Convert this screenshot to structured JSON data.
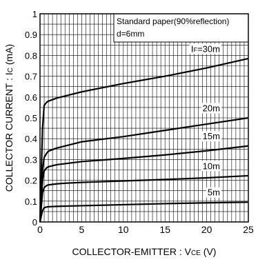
{
  "chart_data": {
    "type": "line",
    "title": "",
    "xlabel": "COLLECTOR-EMITTER : V",
    "xlabel_sub": "CE",
    "xlabel_unit": " (V)",
    "ylabel": "COLLECTOR  CURRENT : I",
    "ylabel_sub": "C",
    "ylabel_unit": " (mA)",
    "xlim": [
      0,
      25
    ],
    "ylim": [
      0,
      1
    ],
    "xticks": [
      0,
      5,
      10,
      15,
      20,
      25
    ],
    "yticks": [
      0,
      0.1,
      0.2,
      0.3,
      0.4,
      0.5,
      0.6,
      0.7,
      0.8,
      0.9,
      1
    ],
    "xtick_labels": [
      "0",
      "5",
      "10",
      "15",
      "20",
      "25"
    ],
    "ytick_labels": [
      "0",
      "0.1",
      "0.2",
      "0.3",
      "0.4",
      "0.5",
      "0.6",
      "0.7",
      "0.8",
      "0.9",
      "1"
    ],
    "grid": true,
    "condition_box": {
      "line1": "Standard paper(90%reflection)",
      "line2": "d=6mm"
    },
    "series": [
      {
        "name": "5m",
        "x": [
          0,
          0.3,
          0.5,
          0.8,
          1,
          2,
          5,
          10,
          15,
          20,
          25
        ],
        "y": [
          0,
          0.055,
          0.068,
          0.072,
          0.073,
          0.075,
          0.078,
          0.083,
          0.088,
          0.092,
          0.095
        ]
      },
      {
        "name": "10m",
        "x": [
          0,
          0.3,
          0.5,
          0.8,
          1,
          2,
          3,
          5,
          10,
          15,
          20,
          25
        ],
        "y": [
          0,
          0.14,
          0.165,
          0.175,
          0.178,
          0.183,
          0.186,
          0.19,
          0.197,
          0.204,
          0.212,
          0.222
        ]
      },
      {
        "name": "15m",
        "x": [
          0,
          0.3,
          0.5,
          0.8,
          1,
          2,
          3,
          5,
          10,
          15,
          20,
          25
        ],
        "y": [
          0,
          0.2,
          0.245,
          0.26,
          0.265,
          0.275,
          0.28,
          0.29,
          0.305,
          0.322,
          0.342,
          0.365
        ]
      },
      {
        "name": "20m",
        "x": [
          0,
          0.3,
          0.5,
          0.8,
          1,
          2,
          3,
          5,
          10,
          15,
          20,
          25
        ],
        "y": [
          0,
          0.25,
          0.31,
          0.33,
          0.34,
          0.355,
          0.365,
          0.385,
          0.41,
          0.44,
          0.47,
          0.5
        ]
      },
      {
        "name": "I_F=30m",
        "label_main": "I",
        "label_sub": "F",
        "label_rest": "=30m",
        "x": [
          0,
          0.3,
          0.5,
          0.8,
          1,
          2,
          3,
          5,
          10,
          15,
          20,
          25
        ],
        "y": [
          0,
          0.45,
          0.56,
          0.575,
          0.58,
          0.595,
          0.605,
          0.625,
          0.665,
          0.7,
          0.74,
          0.785
        ]
      }
    ]
  }
}
